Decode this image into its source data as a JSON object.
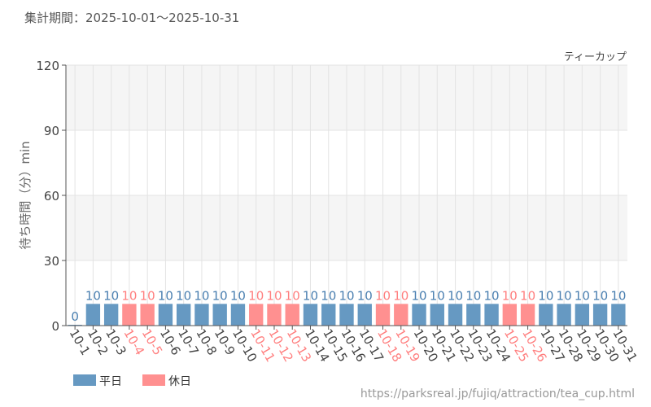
{
  "header": {
    "period": "集計期間：2025-10-01～2025-10-31"
  },
  "footer": {
    "url": "https://parksreal.jp/fujiq/attraction/tea_cup.html"
  },
  "colors": {
    "weekday": "#6699c2",
    "holiday": "#ff9090",
    "weekday_text": "#4a7fb0",
    "holiday_text": "#ff7f7f"
  },
  "chart_data": {
    "type": "bar",
    "title": "ティーカップ",
    "xlabel": "",
    "ylabel": "待ち時間（分）min",
    "ylim": [
      0,
      120
    ],
    "yticks": [
      0,
      30,
      60,
      90,
      120
    ],
    "grid": true,
    "legend_position": "bottom-left",
    "legend": [
      {
        "name": "平日",
        "key": "weekday"
      },
      {
        "name": "休日",
        "key": "holiday"
      }
    ],
    "categories": [
      "10-1",
      "10-2",
      "10-3",
      "10-4",
      "10-5",
      "10-6",
      "10-7",
      "10-8",
      "10-9",
      "10-10",
      "10-11",
      "10-12",
      "10-13",
      "10-14",
      "10-15",
      "10-16",
      "10-17",
      "10-18",
      "10-19",
      "10-20",
      "10-21",
      "10-22",
      "10-23",
      "10-24",
      "10-25",
      "10-26",
      "10-27",
      "10-28",
      "10-29",
      "10-30",
      "10-31"
    ],
    "values": [
      0,
      10,
      10,
      10,
      10,
      10,
      10,
      10,
      10,
      10,
      10,
      10,
      10,
      10,
      10,
      10,
      10,
      10,
      10,
      10,
      10,
      10,
      10,
      10,
      10,
      10,
      10,
      10,
      10,
      10,
      10
    ],
    "holiday": [
      false,
      false,
      false,
      true,
      true,
      false,
      false,
      false,
      false,
      false,
      true,
      true,
      true,
      false,
      false,
      false,
      false,
      true,
      true,
      false,
      false,
      false,
      false,
      false,
      true,
      true,
      false,
      false,
      false,
      false,
      false
    ]
  }
}
